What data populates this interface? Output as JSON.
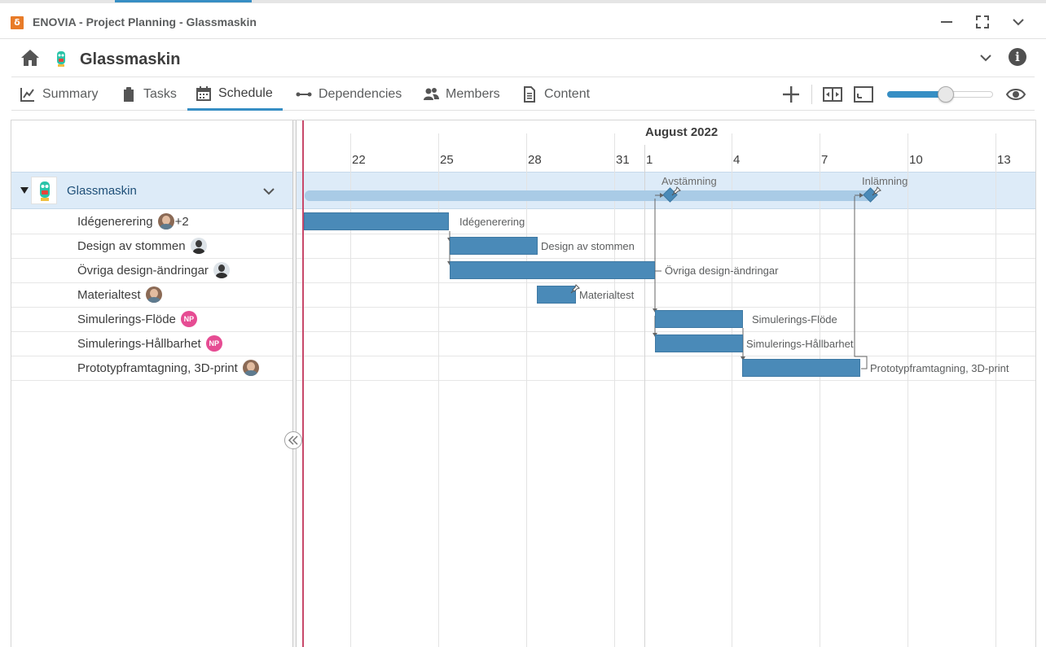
{
  "window": {
    "title": "ENOVIA - Project Planning - Glassmaskin",
    "app_icon": "3ds-compass-icon",
    "controls": [
      "minimize-icon",
      "maximize-icon",
      "chevron-down-icon"
    ]
  },
  "header": {
    "title": "Glassmaskin",
    "home_icon": "home-icon",
    "info_icon": "i"
  },
  "tabs": [
    {
      "label": "Summary",
      "icon": "chart-line-icon"
    },
    {
      "label": "Tasks",
      "icon": "clipboard-icon"
    },
    {
      "label": "Schedule",
      "icon": "calendar-icon",
      "active": true
    },
    {
      "label": "Dependencies",
      "icon": "link-icon"
    },
    {
      "label": "Members",
      "icon": "people-icon"
    },
    {
      "label": "Content",
      "icon": "document-icon"
    }
  ],
  "toolbar": {
    "add_icon": "plus-icon",
    "fit_icon": "fit-width-icon",
    "fullscreen_icon": "expand-icon",
    "zoom_level": 0.56,
    "eye_icon": "eye-icon"
  },
  "timeline": {
    "month": "August 2022",
    "days": [
      "22",
      "25",
      "28",
      "31",
      "1",
      "4",
      "7",
      "10",
      "13"
    ]
  },
  "project": {
    "name": "Glassmaskin",
    "milestones": [
      "Avstämning",
      "Inlämning"
    ]
  },
  "tasks": [
    {
      "name": "Idégenerering",
      "avatar": "female",
      "extra": "+2",
      "bar_label": "Idégenerering"
    },
    {
      "name": "Design av stommen",
      "avatar": "male",
      "bar_label": "Design av stommen"
    },
    {
      "name": "Övriga design-ändringar",
      "avatar": "male",
      "bar_label": "Övriga design-ändringar"
    },
    {
      "name": "Materialtest",
      "avatar": "female",
      "bar_label": "Materialtest"
    },
    {
      "name": "Simulerings-Flöde",
      "avatar": "NP",
      "bar_label": "Simulerings-Flöde"
    },
    {
      "name": "Simulerings-Hållbarhet",
      "avatar": "NP",
      "bar_label": "Simulerings-Hållbarhet"
    },
    {
      "name": "Prototypframtagning, 3D-print",
      "avatar": "female",
      "bar_label": "Prototypframtagning, 3D-print"
    }
  ]
}
